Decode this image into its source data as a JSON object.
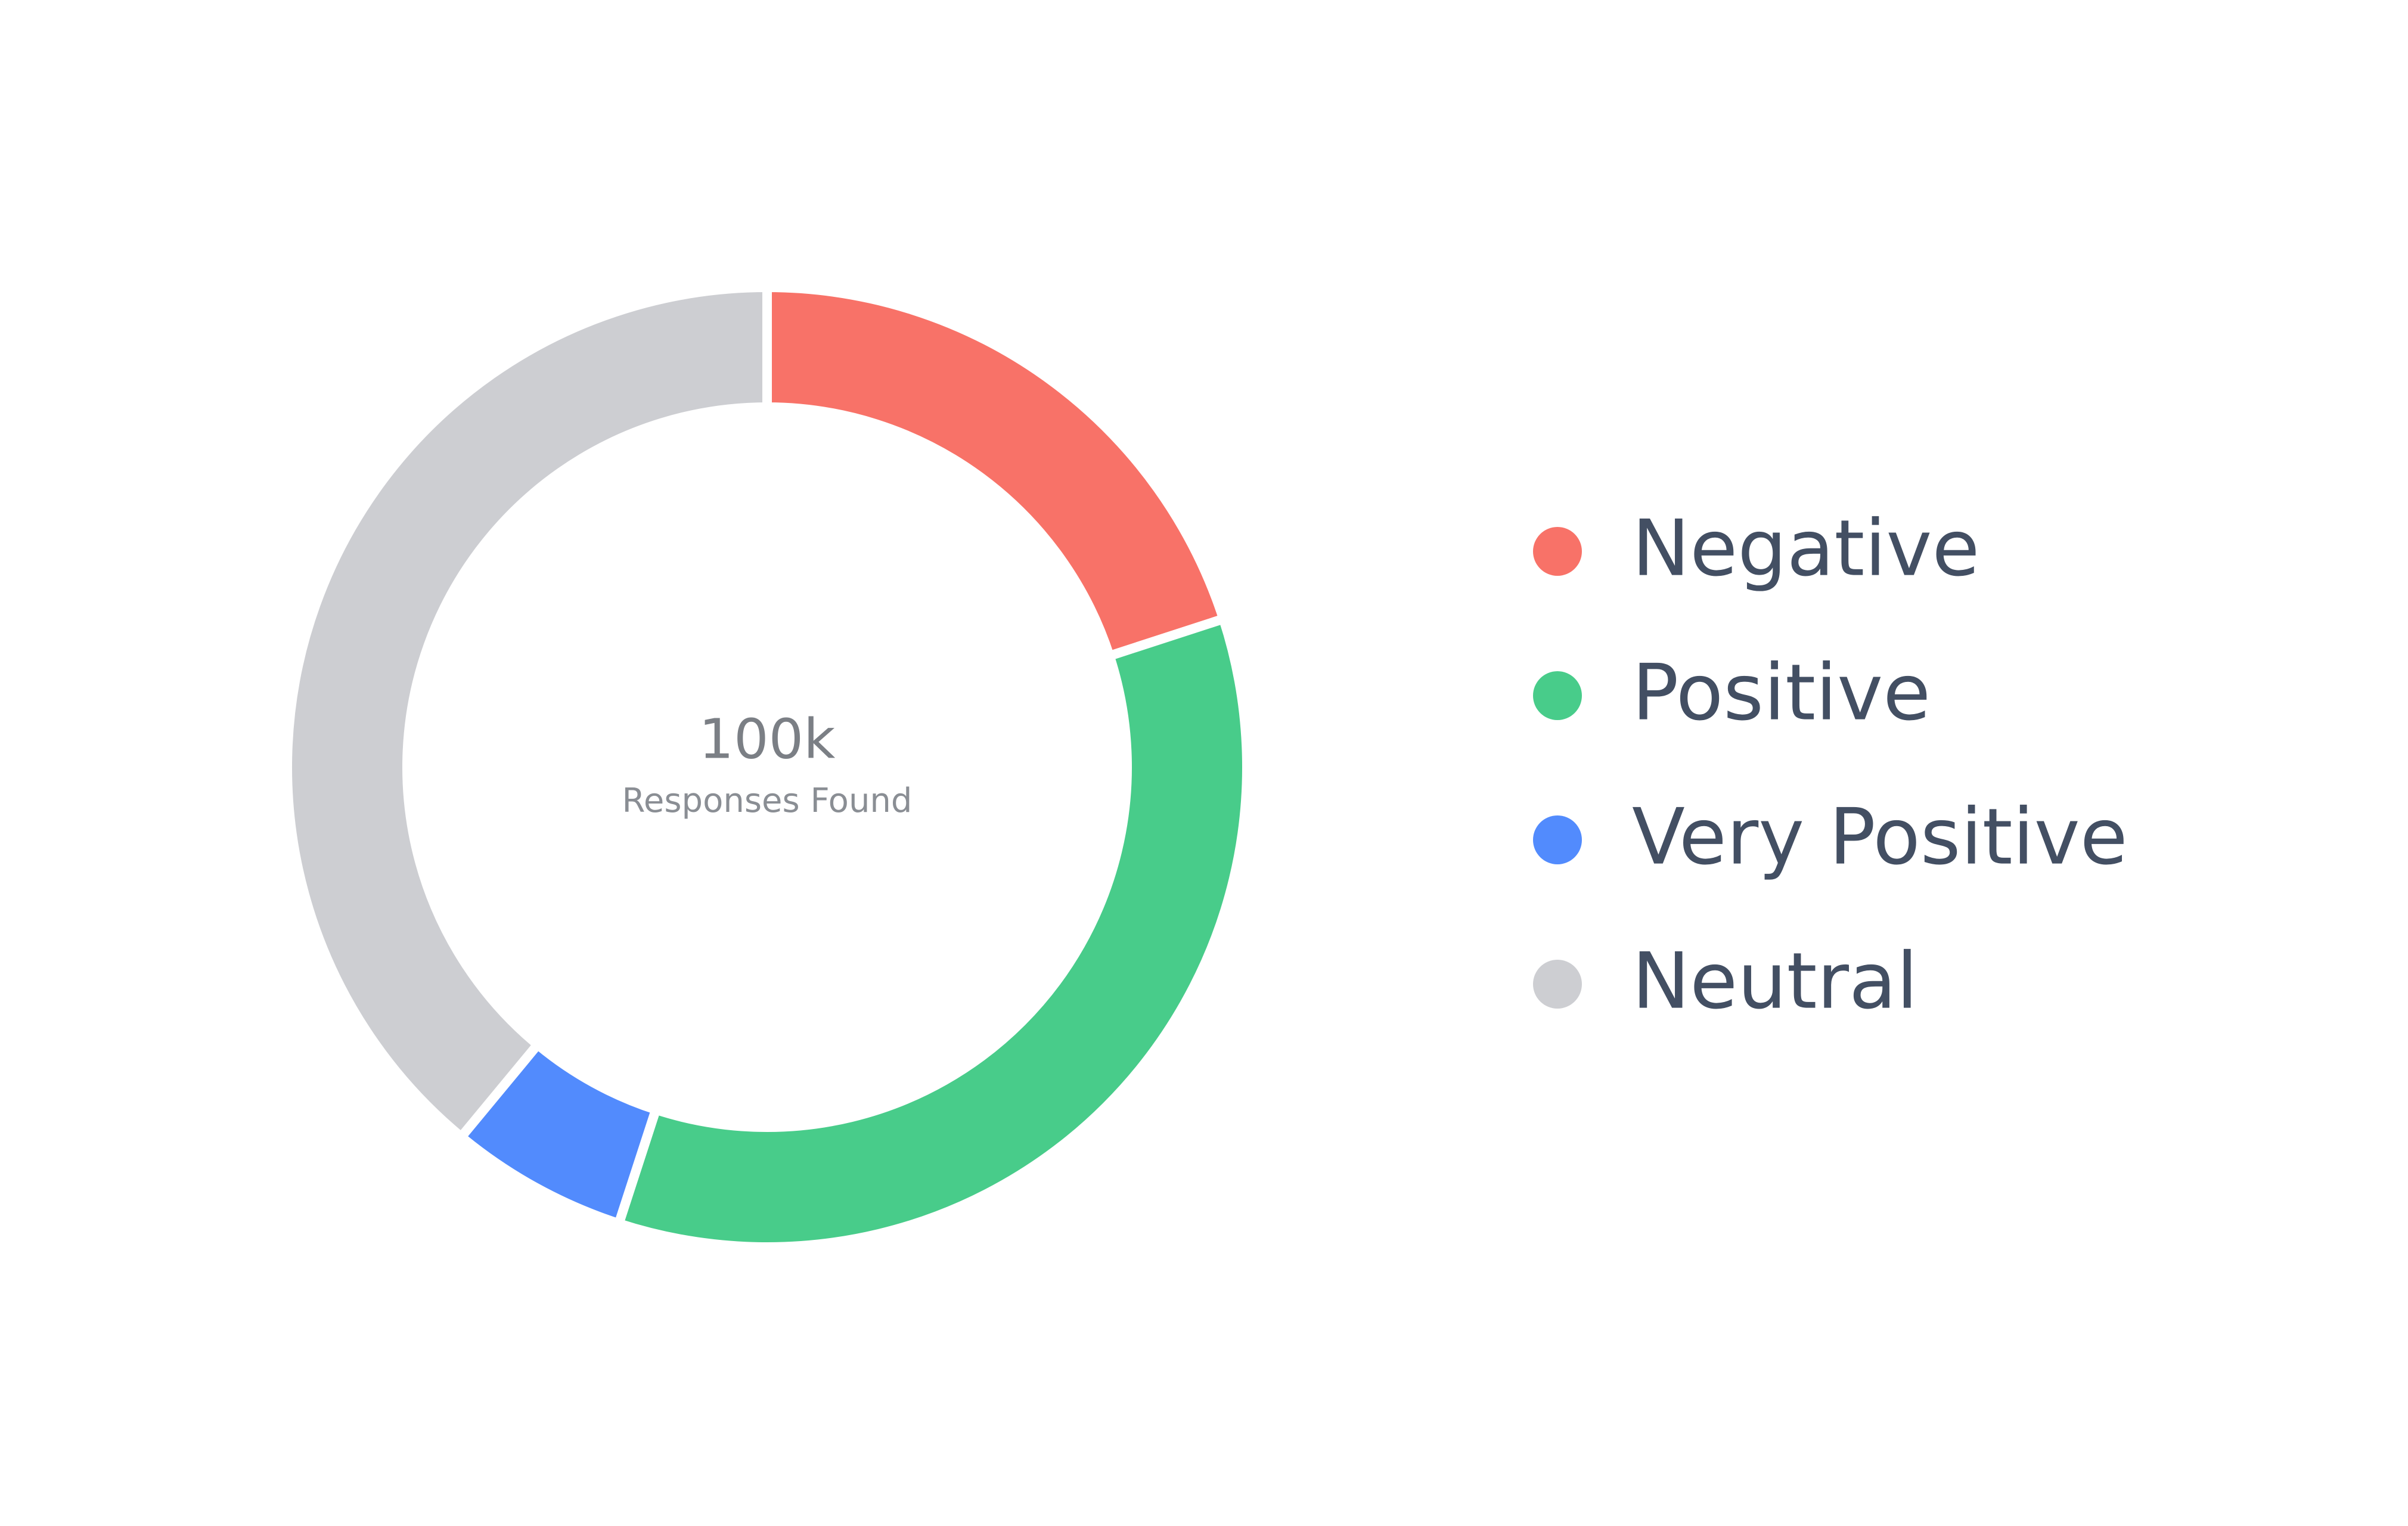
{
  "chart_data": {
    "type": "donut",
    "center_value": "100k",
    "center_label": "Responses Found",
    "categories": [
      "Negative",
      "Positive",
      "Very Positive",
      "Neutral"
    ],
    "values": [
      20,
      35,
      6,
      39
    ],
    "colors": [
      "#f87268",
      "#48cc8a",
      "#528bfd",
      "#cdced2"
    ],
    "legend": "right"
  }
}
